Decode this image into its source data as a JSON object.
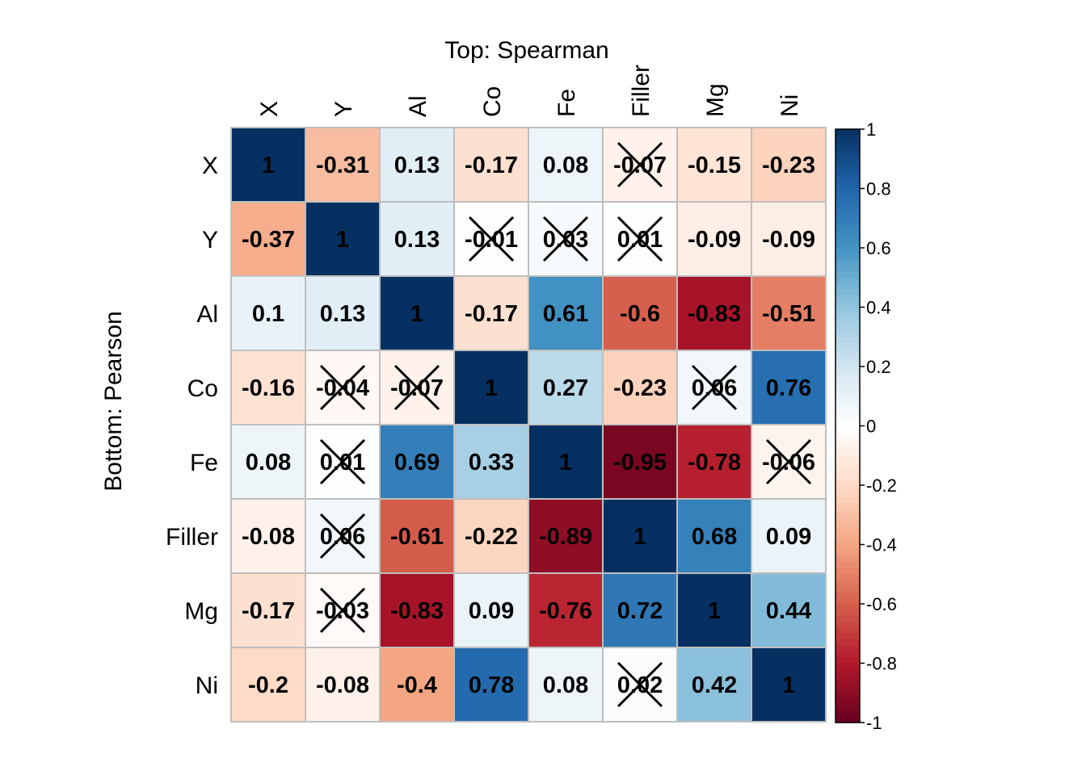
{
  "chart_data": {
    "type": "heatmap",
    "top_label": "Top: Spearman",
    "left_label": "Bottom: Pearson",
    "variables": [
      "X",
      "Y",
      "Al",
      "Co",
      "Fe",
      "Filler",
      "Mg",
      "Ni"
    ],
    "matrix": [
      [
        1,
        -0.31,
        0.13,
        -0.17,
        0.08,
        -0.07,
        -0.15,
        -0.23
      ],
      [
        -0.37,
        1,
        0.13,
        -0.01,
        0.03,
        0.01,
        -0.09,
        -0.09
      ],
      [
        0.1,
        0.13,
        1,
        -0.17,
        0.61,
        -0.6,
        -0.83,
        -0.51
      ],
      [
        -0.16,
        -0.04,
        -0.07,
        1,
        0.27,
        -0.23,
        0.06,
        0.76
      ],
      [
        0.08,
        0.01,
        0.69,
        0.33,
        1,
        -0.95,
        -0.78,
        -0.06
      ],
      [
        -0.08,
        0.06,
        -0.61,
        -0.22,
        -0.89,
        1,
        0.68,
        0.09
      ],
      [
        -0.17,
        -0.03,
        -0.83,
        0.09,
        -0.76,
        0.72,
        1,
        0.44
      ],
      [
        -0.2,
        -0.08,
        -0.4,
        0.78,
        0.08,
        0.02,
        0.42,
        1
      ]
    ],
    "labels": [
      [
        "1",
        "-0.31",
        "0.13",
        "-0.17",
        "0.08",
        "-0.07",
        "-0.15",
        "-0.23"
      ],
      [
        "-0.37",
        "1",
        "0.13",
        "-0.01",
        "0.03",
        "0.01",
        "-0.09",
        "-0.09"
      ],
      [
        "0.1",
        "0.13",
        "1",
        "-0.17",
        "0.61",
        "-0.6",
        "-0.83",
        "-0.51"
      ],
      [
        "-0.16",
        "-0.04",
        "-0.07",
        "1",
        "0.27",
        "-0.23",
        "0.06",
        "0.76"
      ],
      [
        "0.08",
        "0.01",
        "0.69",
        "0.33",
        "1",
        "-0.95",
        "-0.78",
        "-0.06"
      ],
      [
        "-0.08",
        "0.06",
        "-0.61",
        "-0.22",
        "-0.89",
        "1",
        "0.68",
        "0.09"
      ],
      [
        "-0.17",
        "-0.03",
        "-0.83",
        "0.09",
        "-0.76",
        "0.72",
        "1",
        "0.44"
      ],
      [
        "-0.2",
        "-0.08",
        "-0.4",
        "0.78",
        "0.08",
        "0.02",
        "0.42",
        "1"
      ]
    ],
    "crossed": [
      [
        0,
        5
      ],
      [
        1,
        3
      ],
      [
        1,
        4
      ],
      [
        1,
        5
      ],
      [
        3,
        1
      ],
      [
        3,
        2
      ],
      [
        3,
        6
      ],
      [
        4,
        1
      ],
      [
        4,
        7
      ],
      [
        5,
        1
      ],
      [
        6,
        1
      ],
      [
        7,
        5
      ]
    ],
    "colorbar": {
      "range": [
        -1,
        1
      ],
      "ticks": [
        "1",
        "0.8",
        "0.6",
        "0.4",
        "0.2",
        "0",
        "-0.2",
        "-0.4",
        "-0.6",
        "-0.8",
        "-1"
      ],
      "tick_values": [
        1,
        0.8,
        0.6,
        0.4,
        0.2,
        0,
        -0.2,
        -0.4,
        -0.6,
        -0.8,
        -1
      ]
    },
    "colors": {
      "scale": [
        "#67001F",
        "#B2182B",
        "#D6604D",
        "#F4A582",
        "#FDDBC7",
        "#FFFFFF",
        "#D1E5F0",
        "#92C5DE",
        "#4393C3",
        "#2166AC",
        "#053061"
      ],
      "grid": "#BEBEBE",
      "cross": "#000000"
    }
  }
}
